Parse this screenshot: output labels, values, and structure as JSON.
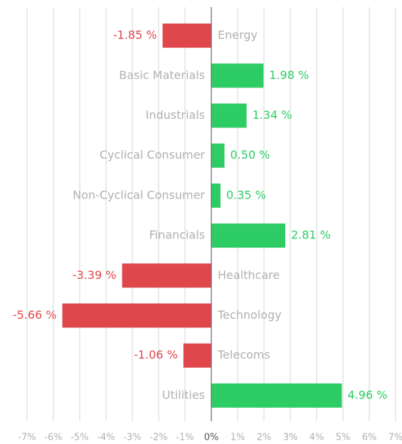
{
  "chart_data": {
    "type": "bar",
    "orientation": "horizontal",
    "categories": [
      "Energy",
      "Basic Materials",
      "Industrials",
      "Cyclical Consumer",
      "Non-Cyclical Consumer",
      "Financials",
      "Healthcare",
      "Technology",
      "Telecoms",
      "Utilities"
    ],
    "values": [
      -1.85,
      1.98,
      1.34,
      0.5,
      0.35,
      2.81,
      -3.39,
      -5.66,
      -1.06,
      4.96
    ],
    "value_labels": [
      "-1.85 %",
      "1.98 %",
      "1.34 %",
      "0.50 %",
      "0.35 %",
      "2.81 %",
      "-3.39 %",
      "-5.66 %",
      "-1.06 %",
      "4.96 %"
    ],
    "positive_color": "#2ecc65",
    "negative_color": "#e0474c",
    "xlim": [
      -7,
      7
    ],
    "xticks": [
      {
        "value": -7,
        "label": "-7%"
      },
      {
        "value": -6,
        "label": "-6%"
      },
      {
        "value": -5,
        "label": "-5%"
      },
      {
        "value": -4,
        "label": "-4%"
      },
      {
        "value": -3,
        "label": "-3%"
      },
      {
        "value": -2,
        "label": "-2%"
      },
      {
        "value": -1,
        "label": "-1%"
      },
      {
        "value": 0,
        "label": "0%"
      },
      {
        "value": 1,
        "label": "1%"
      },
      {
        "value": 2,
        "label": "2%"
      },
      {
        "value": 3,
        "label": "3%"
      },
      {
        "value": 4,
        "label": "4%"
      },
      {
        "value": 5,
        "label": "5%"
      },
      {
        "value": 6,
        "label": "6%"
      },
      {
        "value": 7,
        "label": "7%"
      }
    ],
    "grid": true
  }
}
